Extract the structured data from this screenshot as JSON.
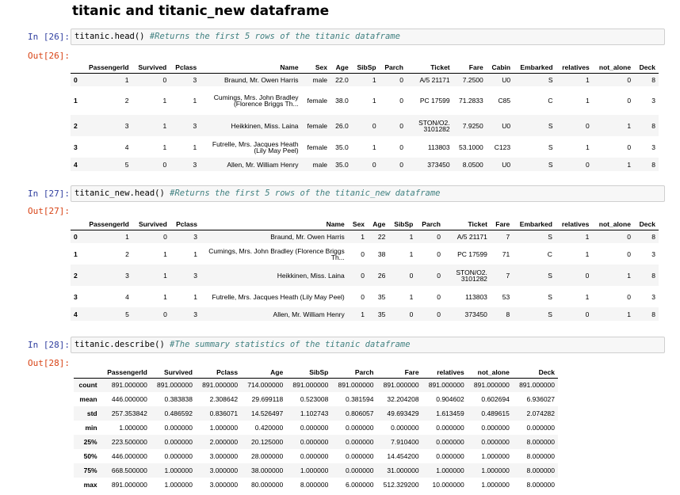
{
  "heading": "titanic and titanic_new dataframe",
  "cells": [
    {
      "in_prompt": "In [26]:",
      "code": "titanic.head()",
      "comment": "#Returns the first 5 rows of the titanic dataframe",
      "out_prompt": "Out[26]:"
    },
    {
      "in_prompt": "In [27]:",
      "code": "titanic_new.head()",
      "comment": "#Returns the first 5 rows of the titanic_new dataframe",
      "out_prompt": "Out[27]:"
    },
    {
      "in_prompt": "In [28]:",
      "code": "titanic.describe()",
      "comment": "#The summary statistics of the titanic dataframe",
      "out_prompt": "Out[28]:"
    }
  ],
  "table1": {
    "columns": [
      "",
      "PassengerId",
      "Survived",
      "Pclass",
      "Name",
      "Sex",
      "Age",
      "SibSp",
      "Parch",
      "Ticket",
      "Fare",
      "Cabin",
      "Embarked",
      "relatives",
      "not_alone",
      "Deck"
    ],
    "rows": [
      [
        "0",
        "1",
        "0",
        "3",
        "Braund, Mr. Owen Harris",
        "male",
        "22.0",
        "1",
        "0",
        "A/5 21171",
        "7.2500",
        "U0",
        "S",
        "1",
        "0",
        "8"
      ],
      [
        "1",
        "2",
        "1",
        "1",
        "Cumings, Mrs. John Bradley (Florence Briggs Th...",
        "female",
        "38.0",
        "1",
        "0",
        "PC 17599",
        "71.2833",
        "C85",
        "C",
        "1",
        "0",
        "3"
      ],
      [
        "2",
        "3",
        "1",
        "3",
        "Heikkinen, Miss. Laina",
        "female",
        "26.0",
        "0",
        "0",
        "STON/O2. 3101282",
        "7.9250",
        "U0",
        "S",
        "0",
        "1",
        "8"
      ],
      [
        "3",
        "4",
        "1",
        "1",
        "Futrelle, Mrs. Jacques Heath (Lily May Peel)",
        "female",
        "35.0",
        "1",
        "0",
        "113803",
        "53.1000",
        "C123",
        "S",
        "1",
        "0",
        "3"
      ],
      [
        "4",
        "5",
        "0",
        "3",
        "Allen, Mr. William Henry",
        "male",
        "35.0",
        "0",
        "0",
        "373450",
        "8.0500",
        "U0",
        "S",
        "0",
        "1",
        "8"
      ]
    ]
  },
  "table2": {
    "columns": [
      "",
      "PassengerId",
      "Survived",
      "Pclass",
      "Name",
      "Sex",
      "Age",
      "SibSp",
      "Parch",
      "Ticket",
      "Fare",
      "Embarked",
      "relatives",
      "not_alone",
      "Deck"
    ],
    "rows": [
      [
        "0",
        "1",
        "0",
        "3",
        "Braund, Mr. Owen Harris",
        "1",
        "22",
        "1",
        "0",
        "A/5 21171",
        "7",
        "S",
        "1",
        "0",
        "8"
      ],
      [
        "1",
        "2",
        "1",
        "1",
        "Cumings, Mrs. John Bradley (Florence Briggs Th...",
        "0",
        "38",
        "1",
        "0",
        "PC 17599",
        "71",
        "C",
        "1",
        "0",
        "3"
      ],
      [
        "2",
        "3",
        "1",
        "3",
        "Heikkinen, Miss. Laina",
        "0",
        "26",
        "0",
        "0",
        "STON/O2. 3101282",
        "7",
        "S",
        "0",
        "1",
        "8"
      ],
      [
        "3",
        "4",
        "1",
        "1",
        "Futrelle, Mrs. Jacques Heath (Lily May Peel)",
        "0",
        "35",
        "1",
        "0",
        "113803",
        "53",
        "S",
        "1",
        "0",
        "3"
      ],
      [
        "4",
        "5",
        "0",
        "3",
        "Allen, Mr. William Henry",
        "1",
        "35",
        "0",
        "0",
        "373450",
        "8",
        "S",
        "0",
        "1",
        "8"
      ]
    ]
  },
  "table3": {
    "columns": [
      "",
      "PassengerId",
      "Survived",
      "Pclass",
      "Age",
      "SibSp",
      "Parch",
      "Fare",
      "relatives",
      "not_alone",
      "Deck"
    ],
    "rows": [
      [
        "count",
        "891.000000",
        "891.000000",
        "891.000000",
        "714.000000",
        "891.000000",
        "891.000000",
        "891.000000",
        "891.000000",
        "891.000000",
        "891.000000"
      ],
      [
        "mean",
        "446.000000",
        "0.383838",
        "2.308642",
        "29.699118",
        "0.523008",
        "0.381594",
        "32.204208",
        "0.904602",
        "0.602694",
        "6.936027"
      ],
      [
        "std",
        "257.353842",
        "0.486592",
        "0.836071",
        "14.526497",
        "1.102743",
        "0.806057",
        "49.693429",
        "1.613459",
        "0.489615",
        "2.074282"
      ],
      [
        "min",
        "1.000000",
        "0.000000",
        "1.000000",
        "0.420000",
        "0.000000",
        "0.000000",
        "0.000000",
        "0.000000",
        "0.000000",
        "0.000000"
      ],
      [
        "25%",
        "223.500000",
        "0.000000",
        "2.000000",
        "20.125000",
        "0.000000",
        "0.000000",
        "7.910400",
        "0.000000",
        "0.000000",
        "8.000000"
      ],
      [
        "50%",
        "446.000000",
        "0.000000",
        "3.000000",
        "28.000000",
        "0.000000",
        "0.000000",
        "14.454200",
        "0.000000",
        "1.000000",
        "8.000000"
      ],
      [
        "75%",
        "668.500000",
        "1.000000",
        "3.000000",
        "38.000000",
        "1.000000",
        "0.000000",
        "31.000000",
        "1.000000",
        "1.000000",
        "8.000000"
      ],
      [
        "max",
        "891.000000",
        "1.000000",
        "3.000000",
        "80.000000",
        "8.000000",
        "6.000000",
        "512.329200",
        "10.000000",
        "1.000000",
        "8.000000"
      ]
    ]
  }
}
